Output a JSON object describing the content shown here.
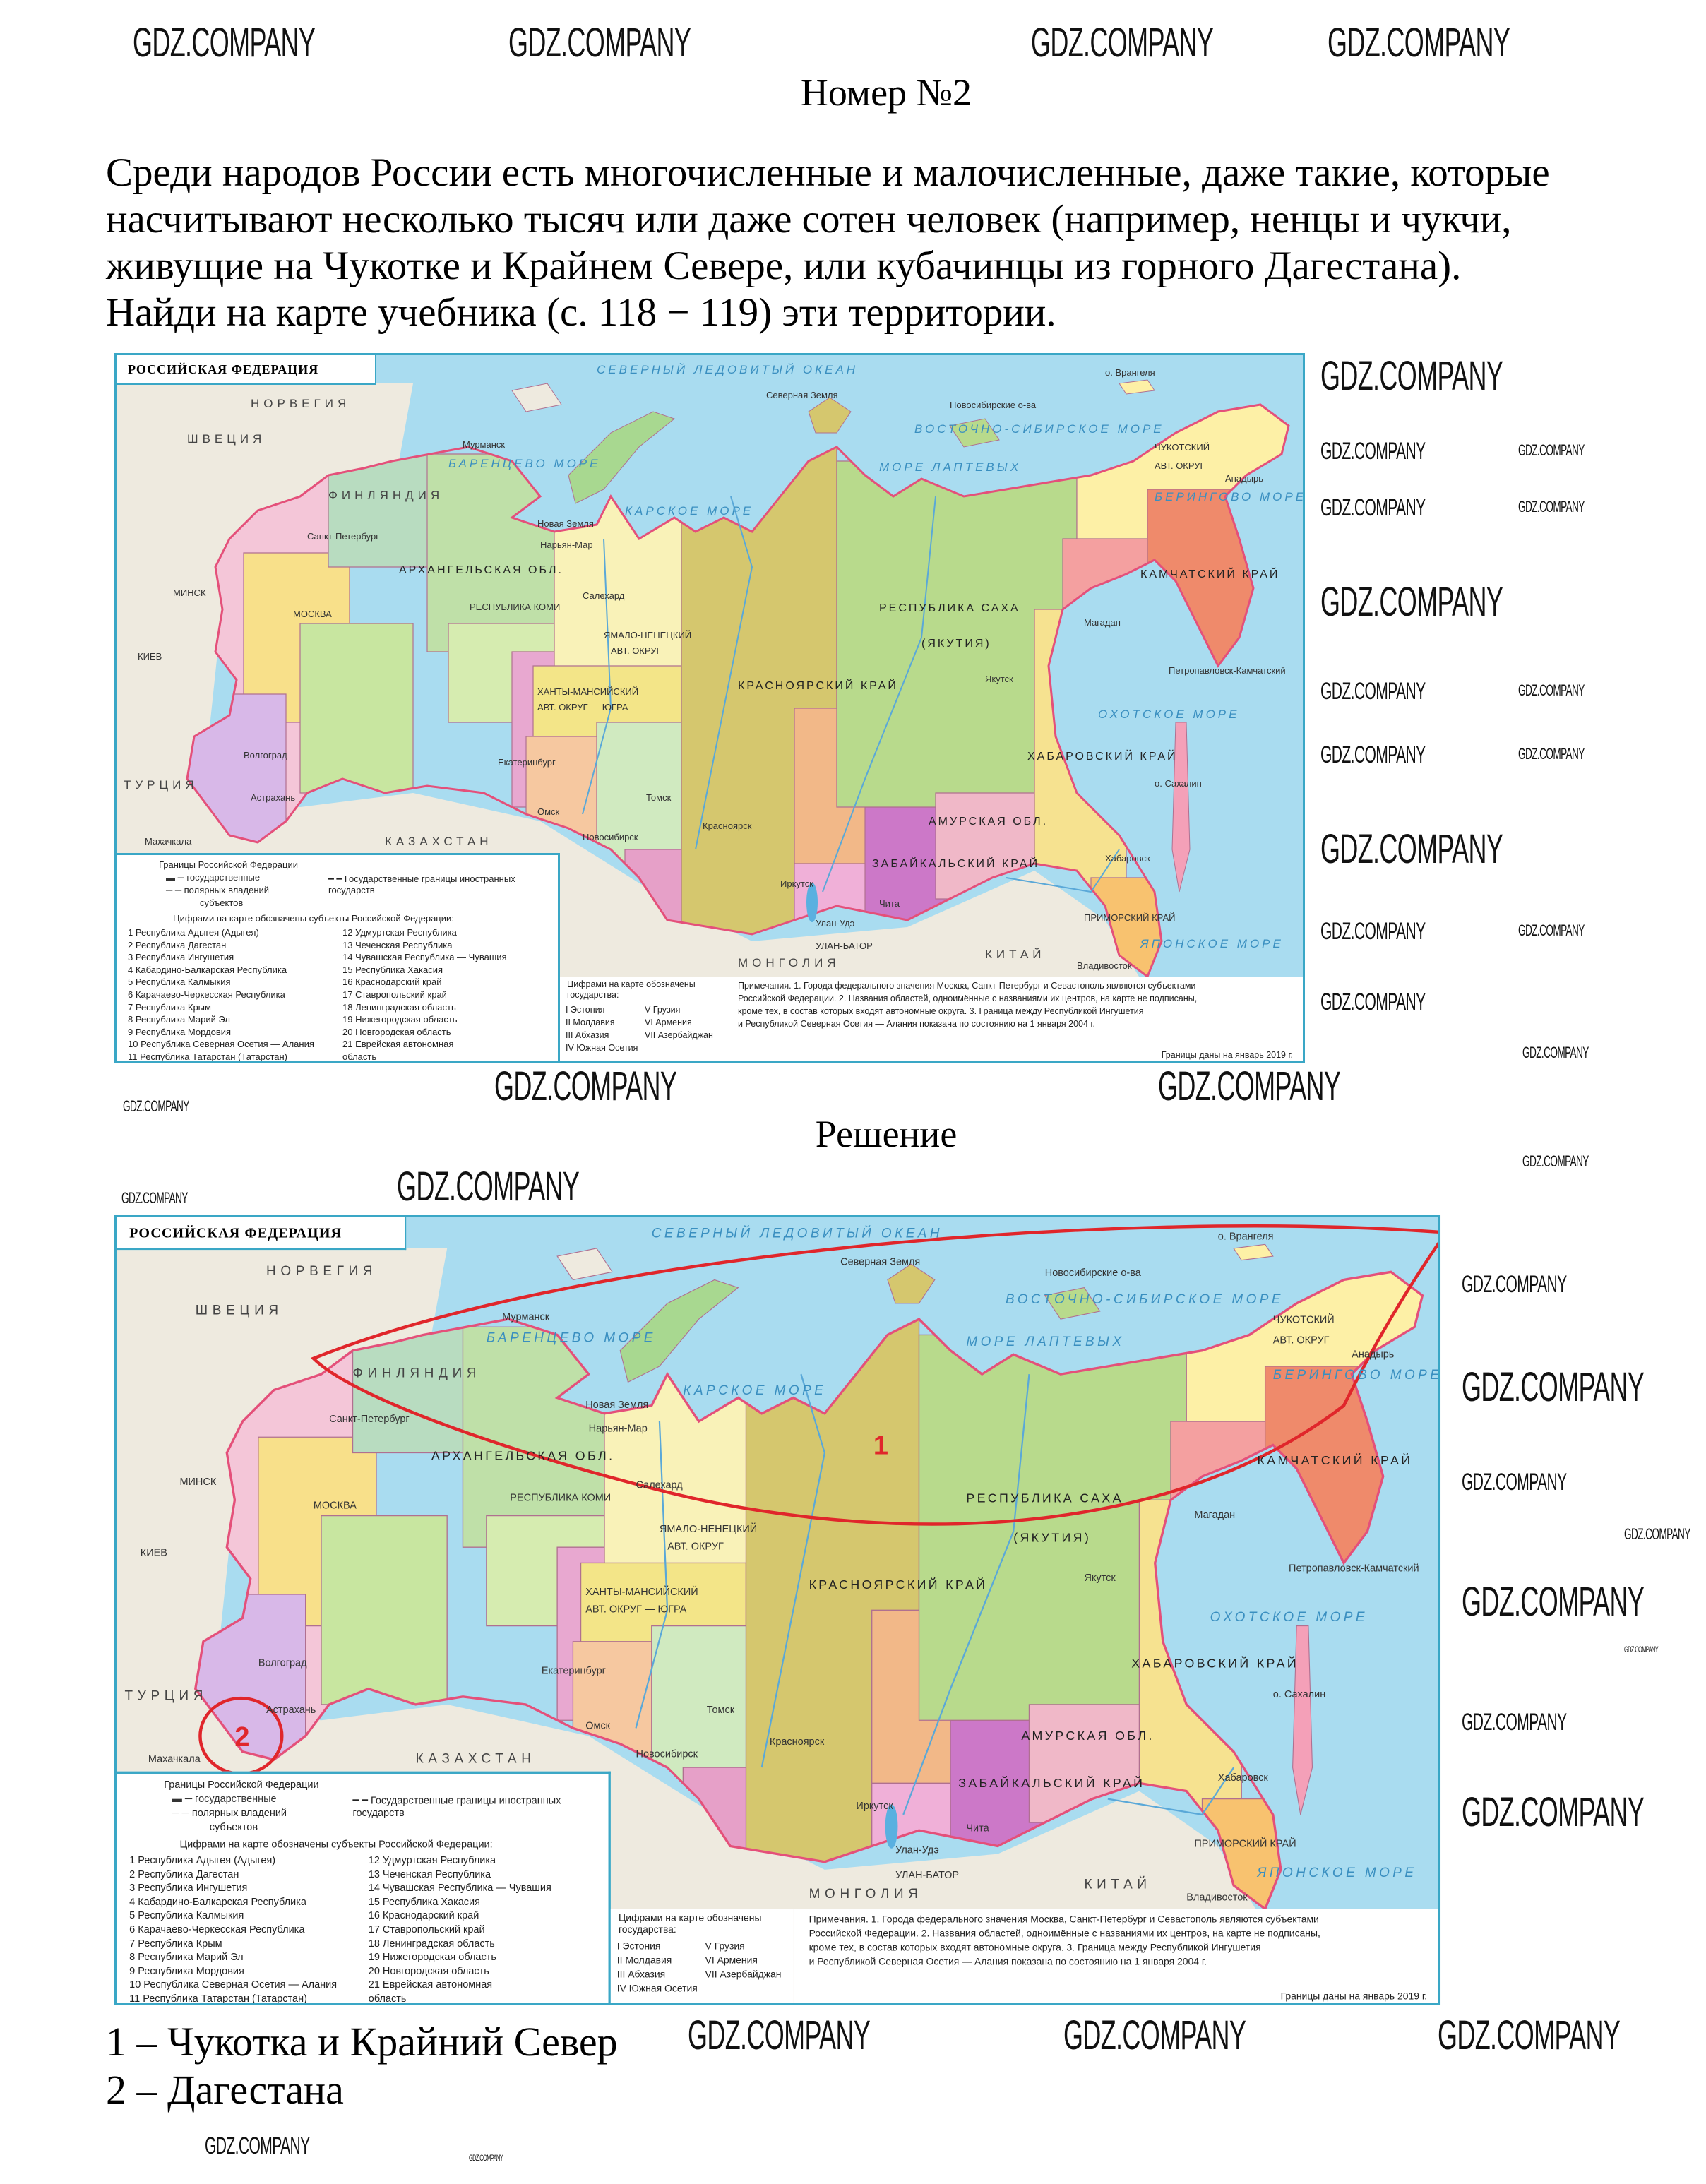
{
  "title": "Номер №2",
  "task_lines": [
    "Среди народов России есть многочисленные и малочисленные, даже такие, которые",
    "насчитывают несколько тысяч или даже сотен человек (например, ненцы и чукчи,",
    "живущие на Чукотке и Крайнем Севере, или кубачинцы из горного Дагестана).",
    "Найди на карте учебника (с. 118 − 119) эти территории."
  ],
  "solution_heading": "Решение",
  "answers": [
    "1 – Чукотка и Крайний Север",
    "2 – Дагестана"
  ],
  "watermark": "GDZ.COMPANY",
  "map": {
    "title": "РОССИЙСКАЯ ФЕДЕРАЦИЯ",
    "colors": {
      "sea": "#a9dcf0",
      "foreign_land": "#eeeadf",
      "border": "#e4507a",
      "frame": "#3aa7c6",
      "annotation": "#e0262b"
    },
    "labels": {
      "ocean": "СЕВЕРНЫЙ ЛЕДОВИТЫЙ ОКЕАН",
      "barents": "БАРЕНЦЕВО МОРЕ",
      "kara": "КАРСКОЕ МОРЕ",
      "laptev": "МОРЕ ЛАПТЕВЫХ",
      "east_siberian": "ВОСТОЧНО-СИБИРСКОЕ МОРЕ",
      "bering": "БЕРИНГОВО МОРЕ",
      "okhotsk": "ОХОТСКОЕ МОРЕ",
      "japan": "ЯПОНСКОЕ МОРЕ",
      "sakha": "РЕСПУБЛИКА САХА",
      "yakutia": "(ЯКУТИЯ)",
      "krasnoyarsk": "КРАСНОЯРСКИЙ КРАЙ",
      "chukotka": "ЧУКОТСКИЙ",
      "chukotka2": "АВТ. ОКРУГ",
      "kamchatka": "КАМЧАТСКИЙ КРАЙ",
      "khanty": "ХАНТЫ-МАНСИЙСКИЙ",
      "khanty2": "АВТ. ОКРУГ — ЮГРА",
      "yamal": "ЯМАЛО-НЕНЕЦКИЙ",
      "yamal2": "АВТ. ОКРУГ",
      "komi": "РЕСПУБЛИКА КОМИ",
      "arkhangelsk": "АРХАНГЕЛЬСКАЯ ОБЛ.",
      "khabarovsk_krai": "ХАБАРОВСКИЙ КРАЙ",
      "amur": "АМУРСКАЯ ОБЛ.",
      "zabaikalsky": "ЗАБАЙКАЛЬСКИЙ КРАЙ",
      "primorsky": "ПРИМОРСКИЙ КРАЙ",
      "kazakhstan": "КАЗАХСТАН",
      "mongolia": "МОНГОЛИЯ",
      "china": "КИТАЙ",
      "finland": "ФИНЛЯНДИЯ",
      "norway": "НОРВЕГИЯ",
      "sweden": "ШВЕЦИЯ",
      "novaya_zemlya": "Новая Земля",
      "severnaya_zemlya": "Северная Земля",
      "novosib_islands": "Новосибирские о-ва",
      "wrangel": "о. Врангеля",
      "sakhalin": "о. Сахалин",
      "murmansk": "Мурманск",
      "moscow": "МОСКВА",
      "spb": "Санкт-Петербург",
      "ekaterinburg": "Екатеринбург",
      "omsk": "Омск",
      "novosibirsk": "Новосибирск",
      "tomsk": "Томск",
      "krasnoyarsk_city": "Красноярск",
      "irkutsk": "Иркутск",
      "chita": "Чита",
      "yakutsk": "Якутск",
      "magadan": "Магадан",
      "anadyr": "Анадырь",
      "petropavlovsk": "Петропавловск-Камчатский",
      "khabarovsk": "Хабаровск",
      "vladivostok": "Владивосток",
      "salekhard": "Салехард",
      "naryan_mar": "Нарьян-Мар",
      "ulan_ude": "Улан-Удэ",
      "ulan_bator": "УЛАН-БАТОР",
      "kyiv": "КИЕВ",
      "minsk": "МИНСК",
      "makhachkala": "Махачкала",
      "astrakhan": "Астрахань",
      "volgograd": "Волгоград",
      "turkey": "ТУРЦИЯ"
    },
    "legend": {
      "borders_title": "Границы Российской Федерации",
      "border_state": "государственные",
      "border_polar": "полярных владений",
      "border_subjects": "субъектов",
      "foreign_borders": "Государственные границы иностранных государств",
      "subjects_title": "Цифрами на карте обозначены субъекты Российской Федерации:",
      "subjects": [
        "1  Республика Адыгея (Адыгея)",
        "2  Республика Дагестан",
        "3  Республика Ингушетия",
        "4  Кабардино-Балкарская Республика",
        "5  Республика Калмыкия",
        "6  Карачаево-Черкесская Республика",
        "7  Республика Крым",
        "8  Республика Марий Эл",
        "9  Республика Мордовия",
        "10  Республика Северная Осетия — Алания",
        "11  Республика Татарстан (Татарстан)",
        "12  Удмуртская Республика",
        "13  Чеченская Республика",
        "14  Чувашская Республика — Чувашия",
        "15  Республика Хакасия",
        "16  Краснодарский край",
        "17  Ставропольский край",
        "18  Ленинградская область",
        "19  Нижегородская область",
        "20  Новгородская область",
        "21  Еврейская автономная",
        "      область"
      ],
      "states_title": "Цифрами на карте обозначены государства:",
      "states": [
        "I  Эстония",
        "II  Молдавия",
        "III  Абхазия",
        "IV  Южная Осетия",
        "V  Грузия",
        "VI  Армения",
        "VII  Азербайджан"
      ],
      "notes": [
        "Примечания.  1. Города федерального значения Москва, Санкт-Петербург и Севастополь являются субъектами",
        "Российской Федерации. 2. Названия областей, одноимённые с названиями их центров, на карте не подписаны,",
        "кроме тех, в состав которых входят автономные округа.  3. Граница между Республикой Ингушетия",
        "и Республикой Северная Осетия — Алания показана по состоянию на 1 января 2004 г."
      ],
      "date_note": "Границы даны на январь 2019 г."
    },
    "annotations": {
      "mark_1": "1",
      "mark_2": "2"
    }
  }
}
